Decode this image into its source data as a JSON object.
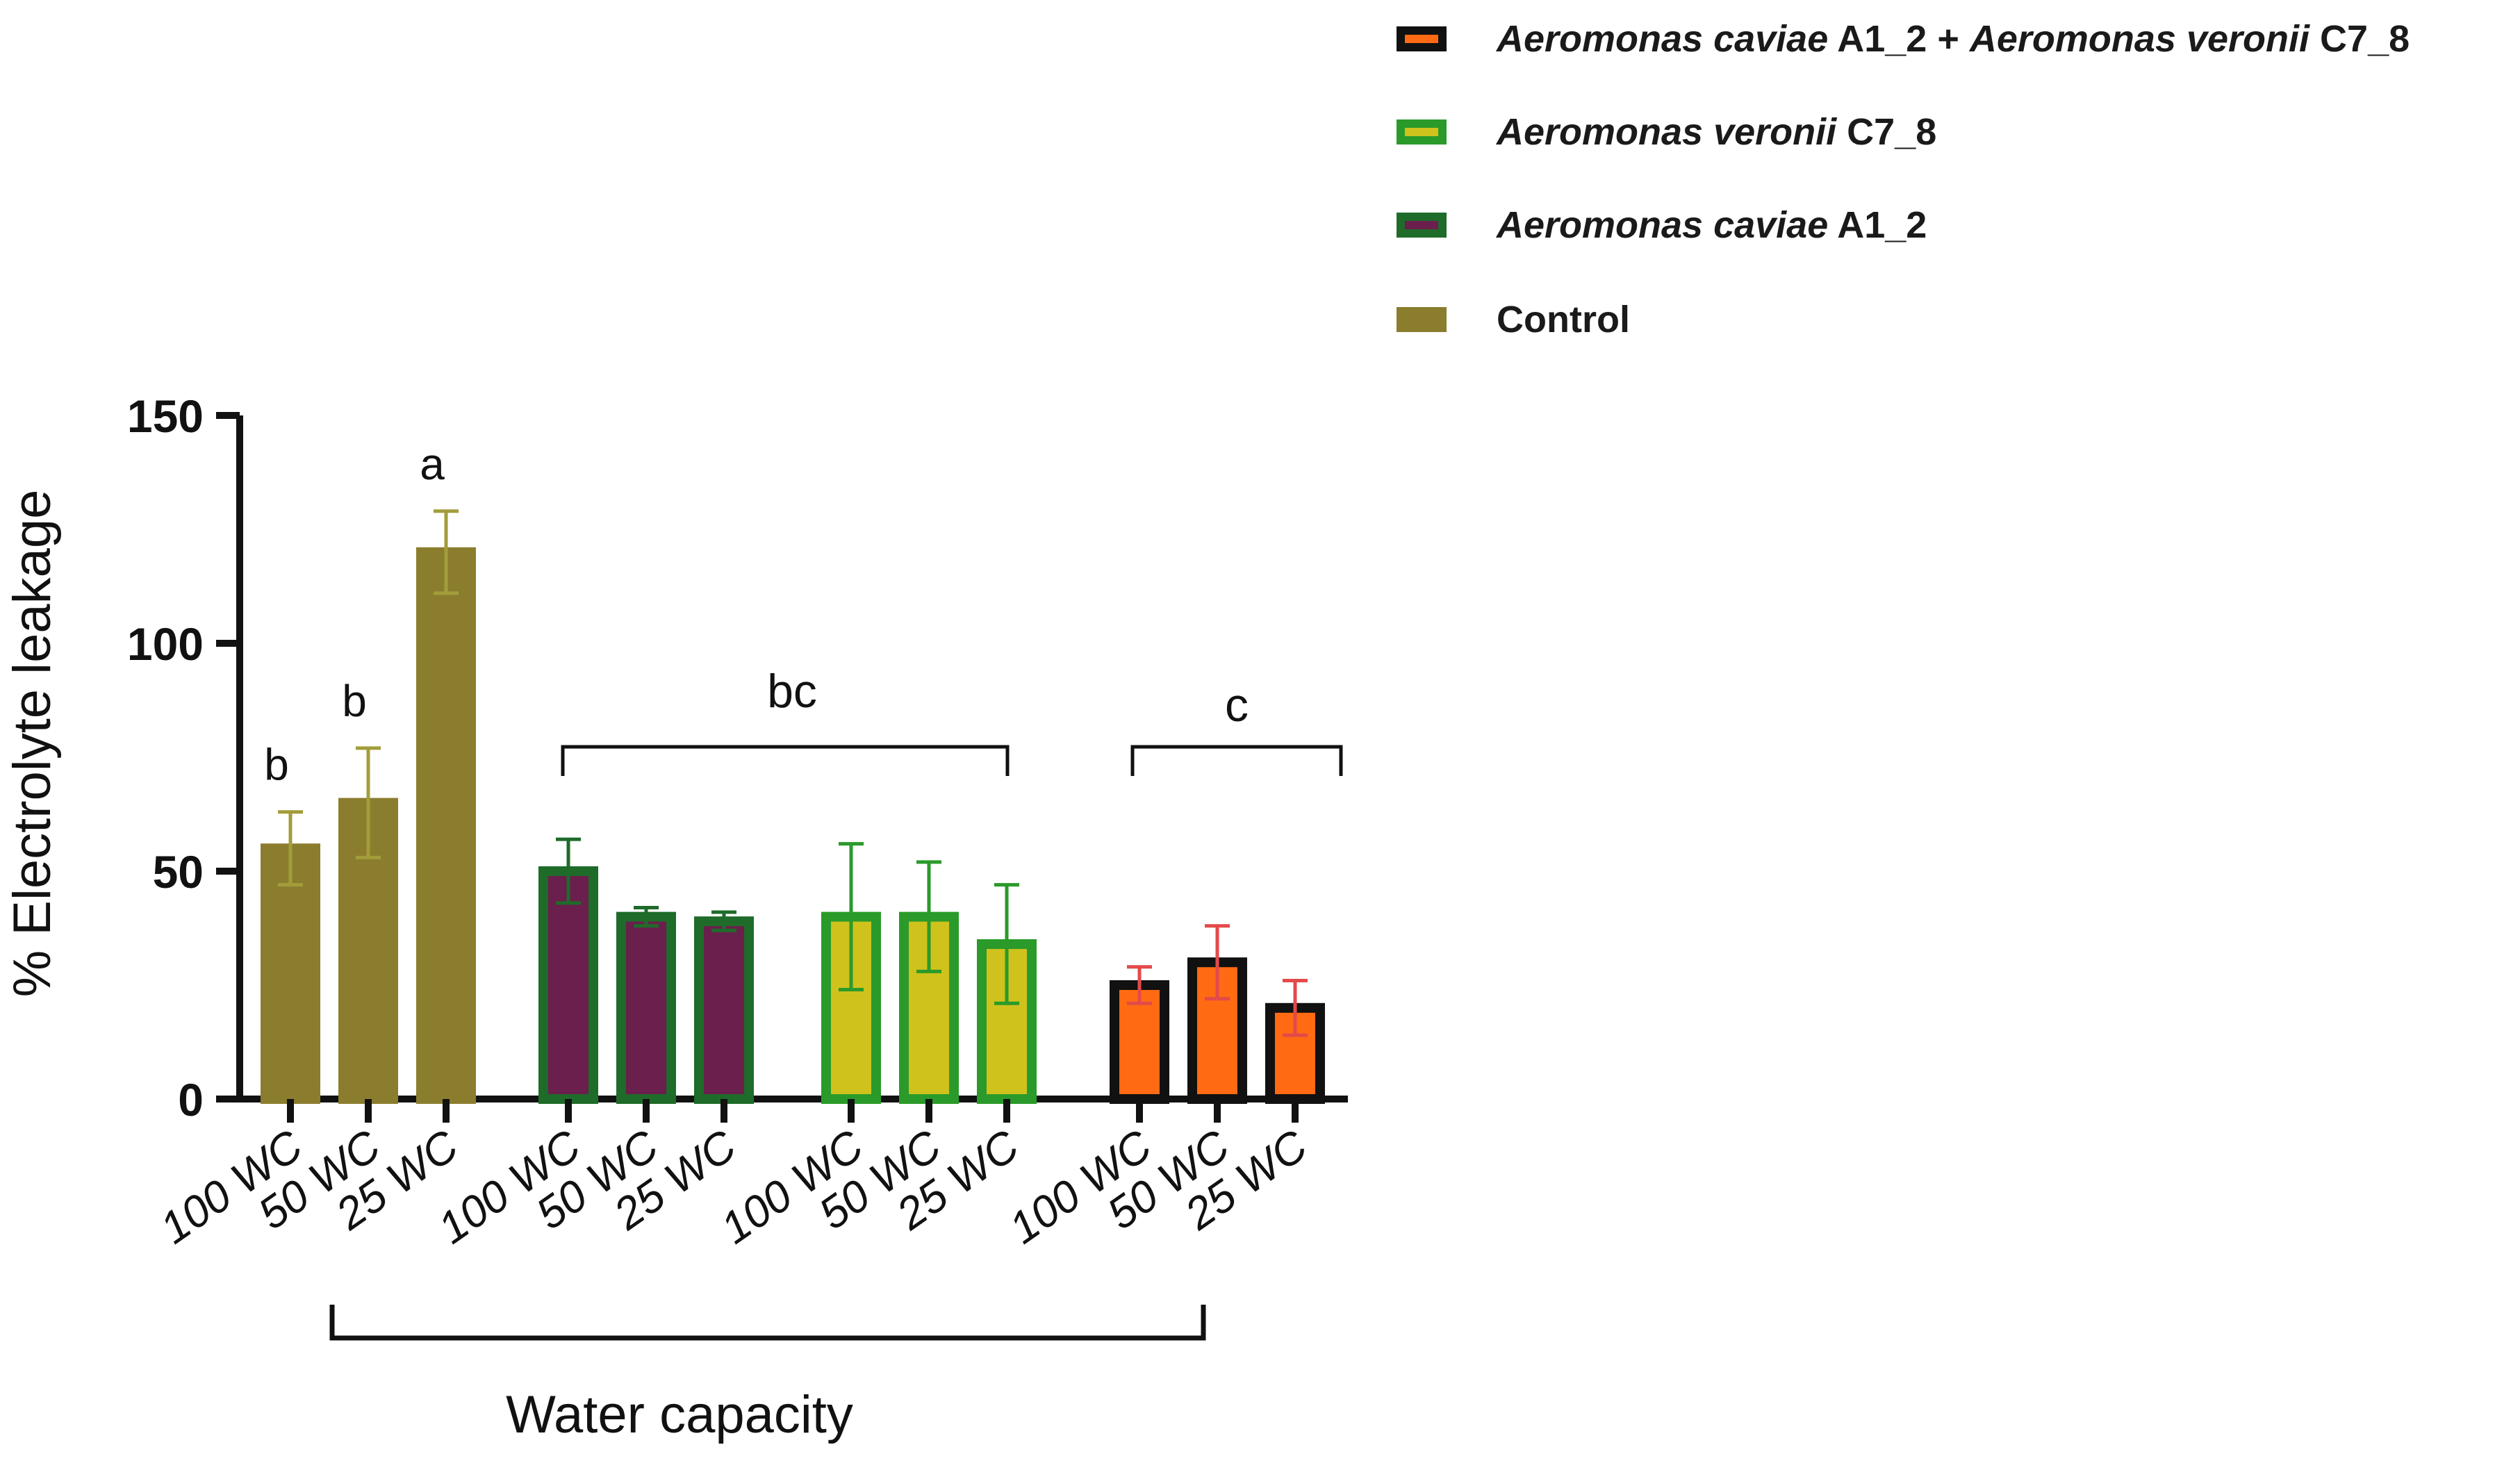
{
  "chart_data": {
    "type": "bar",
    "ylabel": "% Electrolyte leakage",
    "xlabel": "Water capacity",
    "ylim": [
      0,
      150
    ],
    "yticks": [
      0,
      50,
      100,
      150
    ],
    "groups": [
      {
        "name": "Control",
        "fill": "#8b7d2e",
        "stroke": "#8b7d2e",
        "error_color": "#a29d3a",
        "categories": [
          "100 WC",
          "50 WC",
          "25 WC"
        ],
        "values": [
          55,
          65,
          120
        ],
        "errors": [
          8,
          12,
          9
        ],
        "letters": [
          "b",
          "b",
          "a"
        ]
      },
      {
        "name": "Aeromonas caviae A1_2",
        "fill": "#6a1f4d",
        "stroke": "#1f6b2a",
        "error_color": "#1f6b2a",
        "categories": [
          "100 WC",
          "50 WC",
          "25 WC"
        ],
        "values": [
          50,
          40,
          39
        ],
        "errors": [
          7,
          2,
          2
        ]
      },
      {
        "name": "Aeromonas veronii C7_8",
        "fill": "#cfc21c",
        "stroke": "#2a9a2a",
        "error_color": "#2a9a2a",
        "categories": [
          "100 WC",
          "50 WC",
          "25 WC"
        ],
        "values": [
          40,
          40,
          34
        ],
        "errors": [
          16,
          12,
          13
        ]
      },
      {
        "name": "Aeromonas caviae A1_2 + Aeromonas veronii C7_8",
        "fill": "#ff6a13",
        "stroke": "#111111",
        "error_color": "#e34a4a",
        "categories": [
          "100 WC",
          "50 WC",
          "25 WC"
        ],
        "values": [
          25,
          30,
          20
        ],
        "errors": [
          4,
          8,
          6
        ]
      }
    ],
    "brackets": [
      {
        "label": "bc",
        "from_group": 1,
        "to_group": 2
      },
      {
        "label": "c",
        "from_group": 3,
        "to_group": 3
      }
    ]
  },
  "legend": {
    "items": [
      {
        "italic": "Aeromonas caviae",
        "plain": " A1_2 + ",
        "italic2": "Aeromonas veronii",
        "plain2": " C7_8",
        "fill": "#ff6a13",
        "stroke": "#111111"
      },
      {
        "italic": "Aeromonas veronii",
        "plain": " C7_8",
        "italic2": "",
        "plain2": "",
        "fill": "#cfc21c",
        "stroke": "#2a9a2a"
      },
      {
        "italic": "Aeromonas caviae",
        "plain": " A1_2",
        "italic2": "",
        "plain2": "",
        "fill": "#6a1f4d",
        "stroke": "#1f6b2a"
      },
      {
        "italic": "",
        "plain": "Control",
        "italic2": "",
        "plain2": "",
        "fill": "#8b7d2e",
        "stroke": "#8b7d2e"
      }
    ]
  }
}
